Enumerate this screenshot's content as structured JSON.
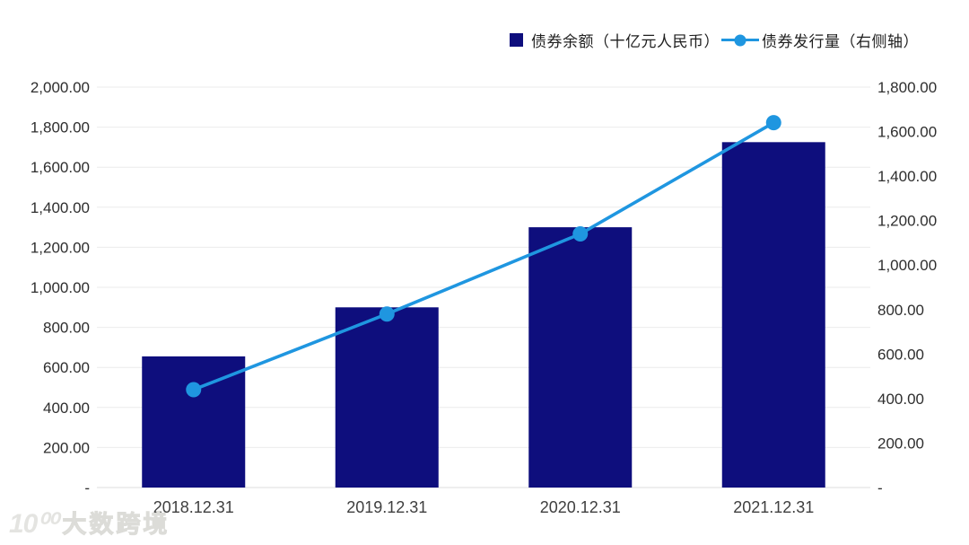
{
  "legend": {
    "bar_label": "债券余额（十亿元人民币）",
    "line_label": "债券发行量（右侧轴）"
  },
  "watermark": {
    "logo_text": "10⁰⁰",
    "brand": "大数跨境"
  },
  "colors": {
    "bar": "#0e0e7d",
    "line": "#1f96e0",
    "grid": "#ebebeb",
    "axis_line": "#dcdcdc",
    "tick_text": "#2e2e2e",
    "xlabel_text": "#3f3f3f",
    "legend_text": "#1f1f1f",
    "background": "#ffffff",
    "watermark": "#e4e4e1"
  },
  "chart_data": {
    "type": "bar",
    "subtype": "combo-bar-line-dual-axis",
    "title": "",
    "categories": [
      "2018.12.31",
      "2019.12.31",
      "2020.12.31",
      "2021.12.31"
    ],
    "series": [
      {
        "name": "债券余额（十亿元人民币）",
        "type": "bar",
        "axis": "left",
        "values": [
          655,
          900,
          1300,
          1725
        ]
      },
      {
        "name": "债券发行量（右侧轴）",
        "type": "line",
        "axis": "right",
        "values": [
          440,
          780,
          1140,
          1640
        ]
      }
    ],
    "left_axis": {
      "min": 0,
      "max": 2000,
      "step": 200,
      "tick_labels": [
        "2,000.00",
        "1,800.00",
        "1,600.00",
        "1,400.00",
        "1,200.00",
        "1,000.00",
        "800.00",
        "600.00",
        "400.00",
        "200.00",
        "-"
      ]
    },
    "right_axis": {
      "min": 0,
      "max": 1800,
      "step": 200,
      "tick_labels": [
        "1,800.00",
        "1,600.00",
        "1,400.00",
        "1,200.00",
        "1,000.00",
        "800.00",
        "600.00",
        "400.00",
        "200.00",
        "-"
      ]
    },
    "grid": "horizontal",
    "legend_position": "top-right"
  }
}
